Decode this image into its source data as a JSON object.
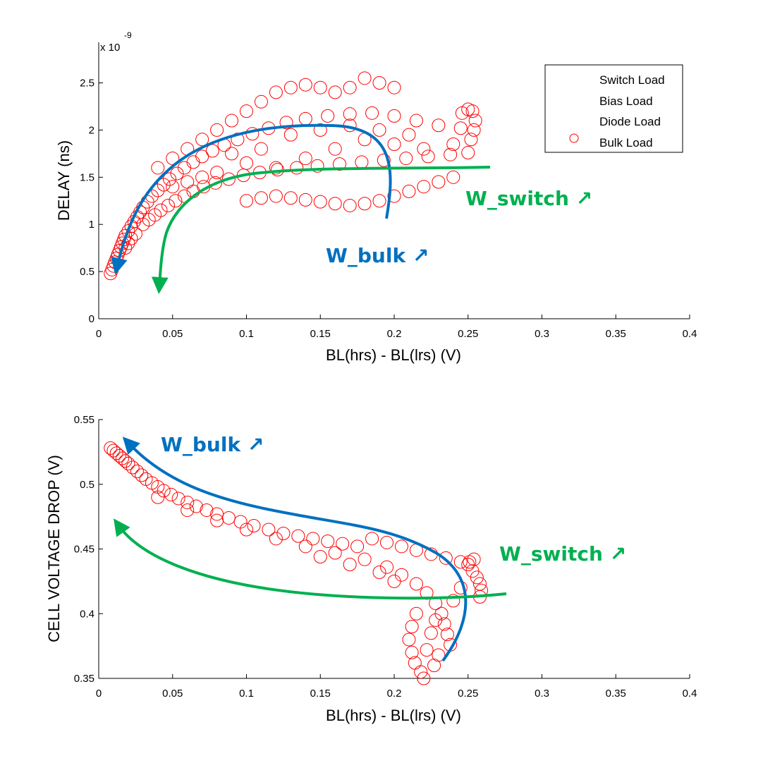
{
  "chart_data": [
    {
      "type": "scatter",
      "panel": "top",
      "xlabel": "BL(hrs) - BL(lrs) (V)",
      "ylabel": "DELAY (ns)",
      "y_exponent_label": "x 10",
      "y_exponent_power": "-9",
      "xlim": [
        0,
        0.4
      ],
      "ylim": [
        0,
        2.5
      ],
      "xticks": [
        "0",
        "0.05",
        "0.1",
        "0.15",
        "0.2",
        "0.25",
        "0.3",
        "0.35",
        "0.4"
      ],
      "yticks": [
        "0",
        "0.5",
        "1",
        "1.5",
        "2",
        "2.5"
      ],
      "grid": false,
      "legend": {
        "placement": "top-right",
        "entries": [
          "Switch Load",
          "Bias Load",
          "Diode Load",
          "Bulk Load"
        ]
      },
      "series": [
        {
          "name": "Bulk Load",
          "marker": "circle",
          "color": "#ff0000",
          "points": [
            [
              0.008,
              0.48
            ],
            [
              0.009,
              0.52
            ],
            [
              0.01,
              0.56
            ],
            [
              0.011,
              0.6
            ],
            [
              0.012,
              0.64
            ],
            [
              0.013,
              0.68
            ],
            [
              0.014,
              0.72
            ],
            [
              0.015,
              0.76
            ],
            [
              0.016,
              0.8
            ],
            [
              0.017,
              0.84
            ],
            [
              0.018,
              0.88
            ],
            [
              0.02,
              0.93
            ],
            [
              0.022,
              0.98
            ],
            [
              0.024,
              1.03
            ],
            [
              0.026,
              1.08
            ],
            [
              0.028,
              1.13
            ],
            [
              0.03,
              1.18
            ],
            [
              0.033,
              1.24
            ],
            [
              0.036,
              1.3
            ],
            [
              0.04,
              1.36
            ],
            [
              0.044,
              1.42
            ],
            [
              0.048,
              1.48
            ],
            [
              0.053,
              1.54
            ],
            [
              0.058,
              1.6
            ],
            [
              0.064,
              1.66
            ],
            [
              0.07,
              1.72
            ],
            [
              0.077,
              1.78
            ],
            [
              0.085,
              1.84
            ],
            [
              0.094,
              1.9
            ],
            [
              0.104,
              1.96
            ],
            [
              0.115,
              2.02
            ],
            [
              0.127,
              2.08
            ],
            [
              0.14,
              2.12
            ],
            [
              0.155,
              2.15
            ],
            [
              0.17,
              2.17
            ],
            [
              0.185,
              2.18
            ],
            [
              0.2,
              2.15
            ],
            [
              0.215,
              2.1
            ],
            [
              0.23,
              2.05
            ],
            [
              0.245,
              2.02
            ],
            [
              0.03,
              1.0
            ],
            [
              0.034,
              1.05
            ],
            [
              0.038,
              1.1
            ],
            [
              0.042,
              1.15
            ],
            [
              0.047,
              1.2
            ],
            [
              0.052,
              1.25
            ],
            [
              0.058,
              1.3
            ],
            [
              0.064,
              1.35
            ],
            [
              0.071,
              1.4
            ],
            [
              0.079,
              1.44
            ],
            [
              0.088,
              1.48
            ],
            [
              0.098,
              1.52
            ],
            [
              0.109,
              1.55
            ],
            [
              0.121,
              1.58
            ],
            [
              0.134,
              1.6
            ],
            [
              0.148,
              1.62
            ],
            [
              0.163,
              1.64
            ],
            [
              0.178,
              1.66
            ],
            [
              0.193,
              1.68
            ],
            [
              0.208,
              1.7
            ],
            [
              0.223,
              1.72
            ],
            [
              0.238,
              1.74
            ],
            [
              0.25,
              1.76
            ],
            [
              0.04,
              1.6
            ],
            [
              0.05,
              1.7
            ],
            [
              0.06,
              1.8
            ],
            [
              0.07,
              1.9
            ],
            [
              0.08,
              2.0
            ],
            [
              0.09,
              2.1
            ],
            [
              0.1,
              2.2
            ],
            [
              0.11,
              2.3
            ],
            [
              0.12,
              2.4
            ],
            [
              0.13,
              2.45
            ],
            [
              0.14,
              2.48
            ],
            [
              0.15,
              2.45
            ],
            [
              0.16,
              2.4
            ],
            [
              0.17,
              2.45
            ],
            [
              0.18,
              2.55
            ],
            [
              0.19,
              2.5
            ],
            [
              0.2,
              2.45
            ],
            [
              0.1,
              1.25
            ],
            [
              0.11,
              1.28
            ],
            [
              0.12,
              1.3
            ],
            [
              0.13,
              1.28
            ],
            [
              0.14,
              1.26
            ],
            [
              0.15,
              1.24
            ],
            [
              0.16,
              1.22
            ],
            [
              0.17,
              1.2
            ],
            [
              0.18,
              1.22
            ],
            [
              0.19,
              1.25
            ],
            [
              0.2,
              1.3
            ],
            [
              0.21,
              1.35
            ],
            [
              0.22,
              1.4
            ],
            [
              0.23,
              1.45
            ],
            [
              0.24,
              1.5
            ],
            [
              0.12,
              1.6
            ],
            [
              0.14,
              1.7
            ],
            [
              0.16,
              1.8
            ],
            [
              0.18,
              1.9
            ],
            [
              0.2,
              1.85
            ],
            [
              0.22,
              1.8
            ],
            [
              0.24,
              1.85
            ],
            [
              0.252,
              1.9
            ],
            [
              0.254,
              2.0
            ],
            [
              0.255,
              2.1
            ],
            [
              0.253,
              2.2
            ],
            [
              0.25,
              2.22
            ],
            [
              0.246,
              2.18
            ],
            [
              0.11,
              1.8
            ],
            [
              0.13,
              1.95
            ],
            [
              0.15,
              2.0
            ],
            [
              0.17,
              2.05
            ],
            [
              0.19,
              2.0
            ],
            [
              0.21,
              1.95
            ],
            [
              0.09,
              1.75
            ],
            [
              0.1,
              1.65
            ],
            [
              0.08,
              1.55
            ],
            [
              0.07,
              1.5
            ],
            [
              0.06,
              1.45
            ],
            [
              0.05,
              1.4
            ],
            [
              0.02,
              0.8
            ],
            [
              0.018,
              0.75
            ],
            [
              0.025,
              0.9
            ],
            [
              0.022,
              0.85
            ]
          ]
        }
      ],
      "annotations": [
        {
          "text": "W_bulk ↗",
          "color": "#0070c0"
        },
        {
          "text": "W_switch ↗",
          "color": "#00b050"
        }
      ]
    },
    {
      "type": "scatter",
      "panel": "bottom",
      "xlabel": "BL(hrs) - BL(lrs) (V)",
      "ylabel": "CELL VOLTAGE DROP (V)",
      "xlim": [
        0,
        0.4
      ],
      "ylim": [
        0.35,
        0.55
      ],
      "xticks": [
        "0",
        "0.05",
        "0.1",
        "0.15",
        "0.2",
        "0.25",
        "0.3",
        "0.35",
        "0.4"
      ],
      "yticks": [
        "0.35",
        "0.4",
        "0.45",
        "0.5",
        "0.55"
      ],
      "grid": false,
      "series": [
        {
          "name": "Bulk Load",
          "marker": "circle",
          "color": "#ff0000",
          "points": [
            [
              0.008,
              0.528
            ],
            [
              0.01,
              0.526
            ],
            [
              0.012,
              0.524
            ],
            [
              0.014,
              0.522
            ],
            [
              0.016,
              0.52
            ],
            [
              0.018,
              0.518
            ],
            [
              0.02,
              0.516
            ],
            [
              0.023,
              0.513
            ],
            [
              0.026,
              0.51
            ],
            [
              0.029,
              0.507
            ],
            [
              0.032,
              0.504
            ],
            [
              0.036,
              0.501
            ],
            [
              0.04,
              0.498
            ],
            [
              0.044,
              0.495
            ],
            [
              0.049,
              0.492
            ],
            [
              0.054,
              0.489
            ],
            [
              0.06,
              0.486
            ],
            [
              0.066,
              0.483
            ],
            [
              0.073,
              0.48
            ],
            [
              0.08,
              0.477
            ],
            [
              0.088,
              0.474
            ],
            [
              0.096,
              0.471
            ],
            [
              0.105,
              0.468
            ],
            [
              0.115,
              0.465
            ],
            [
              0.125,
              0.462
            ],
            [
              0.135,
              0.46
            ],
            [
              0.145,
              0.458
            ],
            [
              0.155,
              0.456
            ],
            [
              0.165,
              0.454
            ],
            [
              0.175,
              0.452
            ],
            [
              0.185,
              0.458
            ],
            [
              0.195,
              0.455
            ],
            [
              0.205,
              0.452
            ],
            [
              0.215,
              0.449
            ],
            [
              0.225,
              0.446
            ],
            [
              0.235,
              0.443
            ],
            [
              0.245,
              0.44
            ],
            [
              0.25,
              0.438
            ],
            [
              0.253,
              0.433
            ],
            [
              0.256,
              0.428
            ],
            [
              0.258,
              0.423
            ],
            [
              0.259,
              0.418
            ],
            [
              0.258,
              0.413
            ],
            [
              0.254,
              0.442
            ],
            [
              0.251,
              0.44
            ],
            [
              0.04,
              0.49
            ],
            [
              0.06,
              0.48
            ],
            [
              0.08,
              0.472
            ],
            [
              0.1,
              0.465
            ],
            [
              0.12,
              0.458
            ],
            [
              0.14,
              0.452
            ],
            [
              0.16,
              0.447
            ],
            [
              0.18,
              0.442
            ],
            [
              0.195,
              0.436
            ],
            [
              0.205,
              0.43
            ],
            [
              0.215,
              0.423
            ],
            [
              0.222,
              0.416
            ],
            [
              0.228,
              0.408
            ],
            [
              0.232,
              0.4
            ],
            [
              0.234,
              0.392
            ],
            [
              0.236,
              0.384
            ],
            [
              0.238,
              0.376
            ],
            [
              0.215,
              0.4
            ],
            [
              0.212,
              0.39
            ],
            [
              0.21,
              0.38
            ],
            [
              0.212,
              0.37
            ],
            [
              0.214,
              0.362
            ],
            [
              0.218,
              0.355
            ],
            [
              0.22,
              0.35
            ],
            [
              0.227,
              0.36
            ],
            [
              0.23,
              0.368
            ],
            [
              0.222,
              0.372
            ],
            [
              0.225,
              0.385
            ],
            [
              0.228,
              0.395
            ],
            [
              0.24,
              0.41
            ],
            [
              0.245,
              0.42
            ],
            [
              0.2,
              0.425
            ],
            [
              0.19,
              0.432
            ],
            [
              0.17,
              0.438
            ],
            [
              0.15,
              0.444
            ]
          ]
        }
      ],
      "annotations": [
        {
          "text": "W_bulk ↗",
          "color": "#0070c0"
        },
        {
          "text": "W_switch ↗",
          "color": "#00b050"
        }
      ]
    }
  ],
  "colors": {
    "marker": "#ff0000",
    "bulk_arrow": "#0070c0",
    "switch_arrow": "#00b050"
  }
}
